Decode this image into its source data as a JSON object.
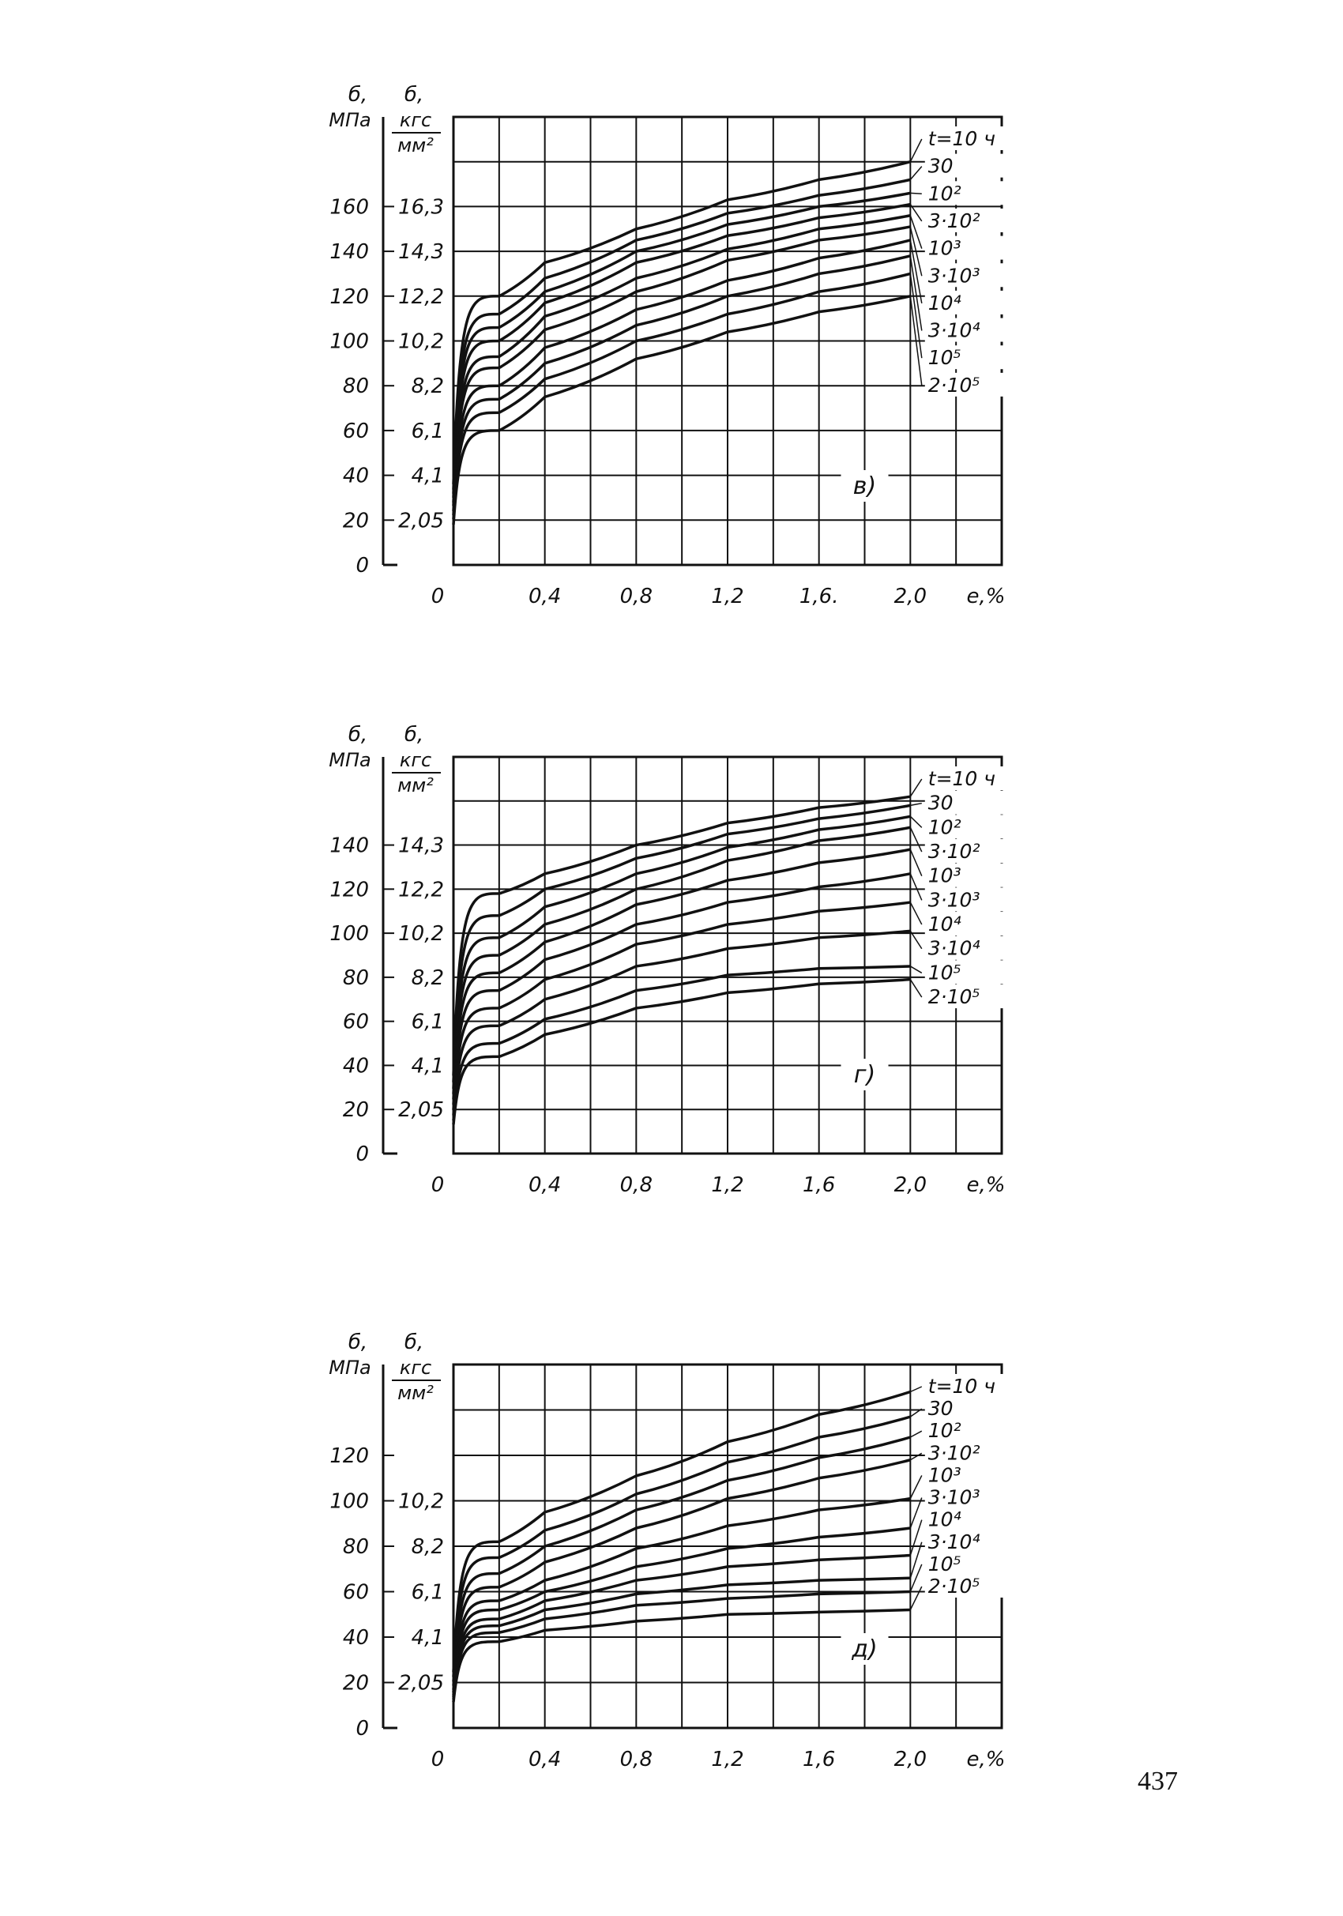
{
  "page_number": "437",
  "charts": [
    {
      "panel_label": "в)",
      "y_label_mpa": [
        "б,",
        "МПа"
      ],
      "y_label_kgf": [
        "б,",
        "кгс",
        "мм²"
      ],
      "y_ticks_mpa": [
        "0",
        "20",
        "40",
        "60",
        "80",
        "100",
        "120",
        "140",
        "160"
      ],
      "y_ticks_kgf": [
        "2,05",
        "4,1",
        "6,1",
        "8,2",
        "10,2",
        "12,2",
        "14,3",
        "16,3"
      ],
      "x_ticks": [
        "0",
        "0,4",
        "0,8",
        "1,2",
        "1,6.",
        "2,0"
      ],
      "x_label": "е,%",
      "curve_labels": [
        "t=10 ч",
        "30",
        "10²",
        "3·10²",
        "10³",
        "3·10³",
        "10⁴",
        "3·10⁴",
        "10⁵",
        "2·10⁵"
      ]
    },
    {
      "panel_label": "г)",
      "y_label_mpa": [
        "б,",
        "МПа"
      ],
      "y_label_kgf": [
        "б,",
        "кгс",
        "мм²"
      ],
      "y_ticks_mpa": [
        "0",
        "20",
        "40",
        "60",
        "80",
        "100",
        "120",
        "140"
      ],
      "y_ticks_kgf": [
        "2,05",
        "4,1",
        "6,1",
        "8,2",
        "10,2",
        "12,2",
        "14,3"
      ],
      "x_ticks": [
        "0",
        "0,4",
        "0,8",
        "1,2",
        "1,6",
        "2,0"
      ],
      "x_label": "е,%",
      "curve_labels": [
        "t=10 ч",
        "30",
        "10²",
        "3·10²",
        "10³",
        "3·10³",
        "10⁴",
        "3·10⁴",
        "10⁵",
        "2·10⁵"
      ]
    },
    {
      "panel_label": "д)",
      "y_label_mpa": [
        "б,",
        "МПа"
      ],
      "y_label_kgf": [
        "б,",
        "кгс",
        "мм²"
      ],
      "y_ticks_mpa": [
        "0",
        "20",
        "40",
        "60",
        "80",
        "100",
        "120"
      ],
      "y_ticks_kgf": [
        "2,05",
        "4,1",
        "6,1",
        "8,2",
        "10,2"
      ],
      "x_ticks": [
        "0",
        "0,4",
        "0,8",
        "1,2",
        "1,6",
        "2,0"
      ],
      "x_label": "е,%",
      "curve_labels": [
        "t=10 ч",
        "30",
        "10²",
        "3·10²",
        "10³",
        "3·10³",
        "10⁴",
        "3·10⁴",
        "10⁵",
        "2·10⁵"
      ]
    }
  ],
  "chart_data": [
    {
      "type": "line",
      "x": [
        0,
        0.2,
        0.4,
        0.8,
        1.2,
        1.6,
        2.0
      ],
      "xlim": [
        0,
        2.4
      ],
      "ylim": [
        0,
        200
      ],
      "grid": true,
      "series": [
        {
          "name": "t=10 ч",
          "values": [
            0,
            120,
            135,
            150,
            163,
            172,
            180
          ]
        },
        {
          "name": "30",
          "values": [
            0,
            112,
            128,
            145,
            157,
            165,
            172
          ]
        },
        {
          "name": "10²",
          "values": [
            0,
            106,
            122,
            140,
            152,
            160,
            166
          ]
        },
        {
          "name": "3·10²",
          "values": [
            0,
            100,
            117,
            135,
            147,
            155,
            161
          ]
        },
        {
          "name": "10³",
          "values": [
            0,
            93,
            111,
            128,
            141,
            150,
            156
          ]
        },
        {
          "name": "3·10³",
          "values": [
            0,
            88,
            105,
            122,
            136,
            145,
            151
          ]
        },
        {
          "name": "10⁴",
          "values": [
            0,
            80,
            97,
            114,
            127,
            137,
            145
          ]
        },
        {
          "name": "3·10⁴",
          "values": [
            0,
            74,
            90,
            107,
            120,
            130,
            138
          ]
        },
        {
          "name": "10⁵",
          "values": [
            0,
            68,
            83,
            100,
            112,
            122,
            130
          ]
        },
        {
          "name": "2·10⁵",
          "values": [
            0,
            60,
            75,
            92,
            104,
            113,
            120
          ]
        }
      ]
    },
    {
      "type": "line",
      "x": [
        0,
        0.2,
        0.4,
        0.8,
        1.2,
        1.6,
        2.0
      ],
      "xlim": [
        0,
        2.4
      ],
      "ylim": [
        0,
        180
      ],
      "grid": true,
      "series": [
        {
          "name": "t=10 ч",
          "values": [
            0,
            118,
            127,
            140,
            150,
            157,
            162
          ]
        },
        {
          "name": "30",
          "values": [
            0,
            108,
            120,
            134,
            145,
            152,
            158
          ]
        },
        {
          "name": "10²",
          "values": [
            0,
            98,
            112,
            127,
            139,
            147,
            153
          ]
        },
        {
          "name": "3·10²",
          "values": [
            0,
            90,
            104,
            120,
            133,
            142,
            148
          ]
        },
        {
          "name": "10³",
          "values": [
            0,
            82,
            96,
            113,
            124,
            132,
            138
          ]
        },
        {
          "name": "3·10³",
          "values": [
            0,
            74,
            88,
            104,
            114,
            121,
            127
          ]
        },
        {
          "name": "10⁴",
          "values": [
            0,
            66,
            79,
            95,
            104,
            110,
            114
          ]
        },
        {
          "name": "3·10⁴",
          "values": [
            0,
            58,
            70,
            85,
            93,
            98,
            101
          ]
        },
        {
          "name": "10⁵",
          "values": [
            0,
            50,
            61,
            74,
            81,
            84,
            85
          ]
        },
        {
          "name": "2·10⁵",
          "values": [
            0,
            44,
            54,
            66,
            73,
            77,
            79
          ]
        }
      ]
    },
    {
      "type": "line",
      "x": [
        0,
        0.2,
        0.4,
        0.8,
        1.2,
        1.6,
        2.0
      ],
      "xlim": [
        0,
        2.4
      ],
      "ylim": [
        0,
        160
      ],
      "grid": true,
      "series": [
        {
          "name": "t=10 ч",
          "values": [
            0,
            82,
            95,
            111,
            126,
            138,
            148
          ]
        },
        {
          "name": "30",
          "values": [
            0,
            75,
            87,
            103,
            117,
            128,
            137
          ]
        },
        {
          "name": "10²",
          "values": [
            0,
            68,
            80,
            96,
            109,
            119,
            128
          ]
        },
        {
          "name": "3·10²",
          "values": [
            0,
            62,
            73,
            88,
            101,
            110,
            118
          ]
        },
        {
          "name": "10³",
          "values": [
            0,
            56,
            65,
            79,
            89,
            96,
            101
          ]
        },
        {
          "name": "3·10³",
          "values": [
            0,
            52,
            60,
            71,
            79,
            84,
            88
          ]
        },
        {
          "name": "10⁴",
          "values": [
            0,
            48,
            56,
            65,
            71,
            74,
            76
          ]
        },
        {
          "name": "3·10⁴",
          "values": [
            0,
            45,
            52,
            59,
            63,
            65,
            66
          ]
        },
        {
          "name": "10⁵",
          "values": [
            0,
            42,
            48,
            54,
            57,
            59,
            60
          ]
        },
        {
          "name": "2·10⁵",
          "values": [
            0,
            38,
            43,
            47,
            50,
            51,
            52
          ]
        }
      ]
    }
  ]
}
